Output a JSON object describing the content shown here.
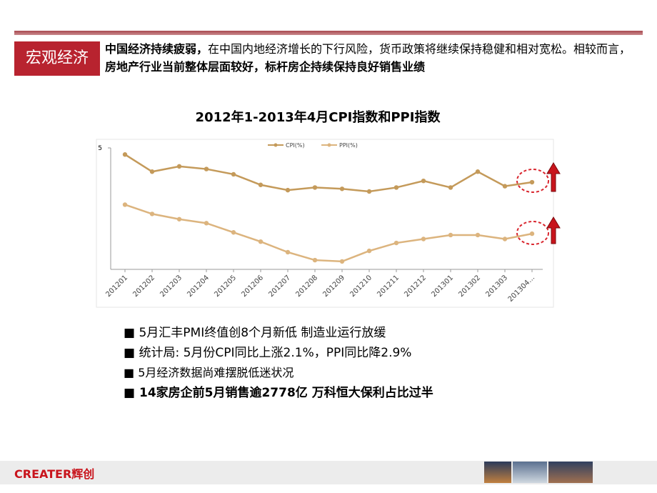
{
  "header": {
    "tag": "宏观经济",
    "text": [
      {
        "text": "中国经济持续疲弱，",
        "bold": true
      },
      {
        "text": "在中国内地经济增长的下行风险，货币政策将继续保持稳健和相对宽松。相较而言，",
        "bold": false
      },
      {
        "text": "房地产行业当前整体层面较好，标杆房企持续保持良好销售业绩",
        "bold": true
      }
    ]
  },
  "chart_data": {
    "type": "line",
    "title": "2012年1-2013年4月CPI指数和PPI指数",
    "categories": [
      "201201",
      "201202",
      "201203",
      "201204",
      "201205",
      "201206",
      "201207",
      "201208",
      "201209",
      "201210",
      "201211",
      "201212",
      "201301",
      "201302",
      "201303",
      "201304..."
    ],
    "series": [
      {
        "name": "CPI(%)",
        "color": "#c49a5a",
        "values": [
          4.5,
          3.2,
          3.6,
          3.4,
          3.0,
          2.2,
          1.8,
          2.0,
          1.9,
          1.7,
          2.0,
          2.5,
          2.0,
          3.2,
          2.1,
          2.4
        ]
      },
      {
        "name": "PPI(%)",
        "color": "#dcb47e",
        "values": [
          0.7,
          0.0,
          -0.4,
          -0.7,
          -1.4,
          -2.1,
          -2.9,
          -3.5,
          -3.6,
          -2.8,
          -2.2,
          -1.9,
          -1.6,
          -1.6,
          -1.9,
          -1.5
        ]
      }
    ],
    "ylim": [
      -4.2,
      5
    ],
    "yticks": [
      5
    ]
  },
  "bullets": [
    {
      "text": "5月汇丰PMI终值创8个月新低 制造业运行放缓",
      "bold": false
    },
    {
      "text": "统计局: 5月份CPI同比上涨2.1%，PPI同比降2.9%",
      "bold": false
    },
    {
      "text": "5月经济数据尚难摆脱低迷状况",
      "bold": false
    },
    {
      "text": "14家房企前5月销售逾2778亿 万科恒大保利占比过半",
      "bold": true
    }
  ],
  "footer": {
    "brand": "CREATER辉创"
  }
}
